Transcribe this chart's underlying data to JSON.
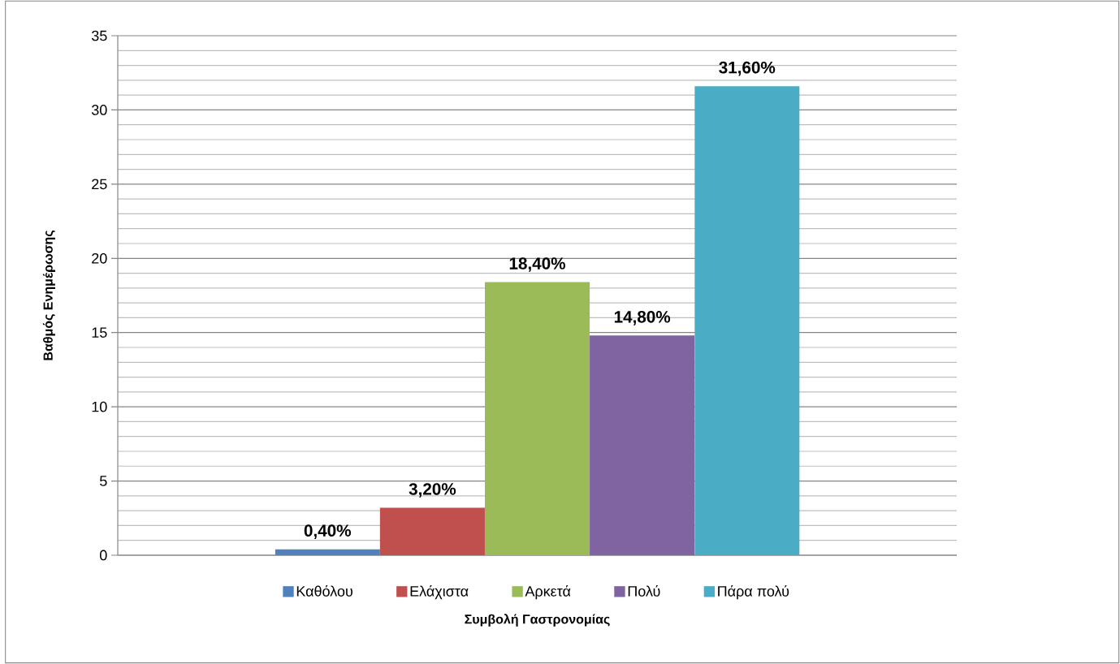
{
  "chart_data": {
    "type": "bar",
    "xlabel": "Συμβολή Γαστρονομίας",
    "ylabel": "Βαθμός Ενημέρωσης",
    "categories": [
      null
    ],
    "series": [
      {
        "name": "Καθόλου",
        "color": "#4f81bd",
        "values": [
          0.4
        ],
        "value_labels": [
          "0,40%"
        ]
      },
      {
        "name": "Ελάχιστα",
        "color": "#c0504d",
        "values": [
          3.2
        ],
        "value_labels": [
          "3,20%"
        ]
      },
      {
        "name": "Αρκετά",
        "color": "#9bbb59",
        "values": [
          18.4
        ],
        "value_labels": [
          "18,40%"
        ]
      },
      {
        "name": "Πολύ",
        "color": "#8064a2",
        "values": [
          14.8
        ],
        "value_labels": [
          "14,80%"
        ]
      },
      {
        "name": "Πάρα πολύ",
        "color": "#4bacc6",
        "values": [
          31.6
        ],
        "value_labels": [
          "31,60%"
        ]
      }
    ],
    "ylim": [
      0,
      35
    ],
    "yticks": [
      0,
      5,
      10,
      15,
      20,
      25,
      30,
      35
    ],
    "grid": "y",
    "legend": "bottom"
  }
}
